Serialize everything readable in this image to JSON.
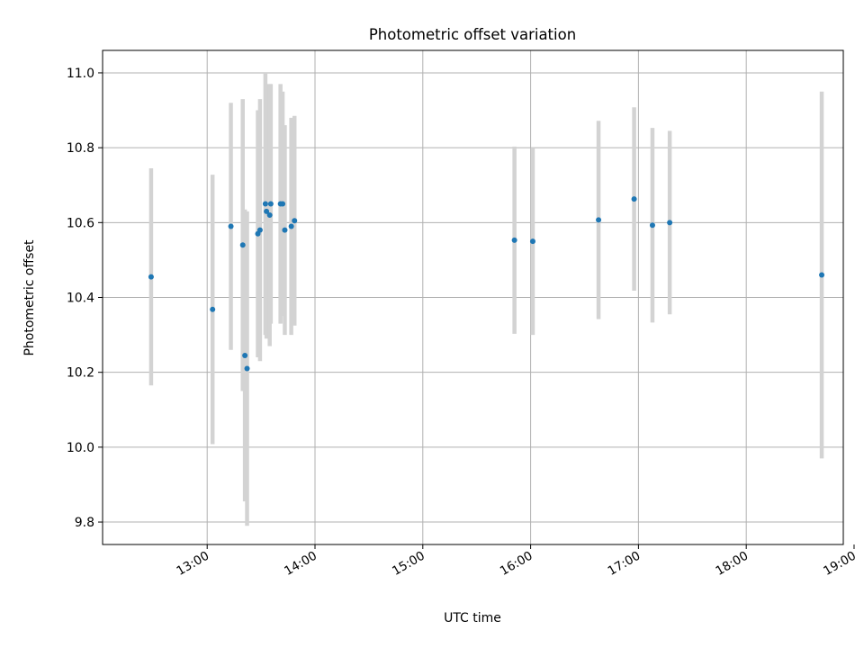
{
  "chart_data": {
    "type": "scatter",
    "title": "Photometric offset variation",
    "xlabel": "UTC time",
    "ylabel": "Photometric offset",
    "x_unit": "hours (UTC)",
    "xlim": [
      12.03,
      18.9
    ],
    "ylim": [
      9.74,
      11.06
    ],
    "xticks": [
      13,
      14,
      15,
      16,
      17,
      18,
      19
    ],
    "xtick_labels": [
      "13:00",
      "14:00",
      "15:00",
      "16:00",
      "17:00",
      "18:00",
      "19:00"
    ],
    "yticks": [
      9.8,
      10.0,
      10.2,
      10.4,
      10.6,
      10.8,
      11.0
    ],
    "ytick_labels": [
      "9.8",
      "10.0",
      "10.2",
      "10.4",
      "10.6",
      "10.8",
      "11.0"
    ],
    "grid": true,
    "colors": {
      "marker": "#1f77b4",
      "errorbar": "#d3d3d3",
      "grid": "#b0b0b0"
    },
    "points": [
      {
        "x": 12.48,
        "y": 10.455,
        "yerr": 0.29
      },
      {
        "x": 13.05,
        "y": 10.368,
        "yerr": 0.36
      },
      {
        "x": 13.22,
        "y": 10.59,
        "yerr": 0.33
      },
      {
        "x": 13.33,
        "y": 10.54,
        "yerr": 0.39
      },
      {
        "x": 13.35,
        "y": 10.245,
        "yerr": 0.39
      },
      {
        "x": 13.37,
        "y": 10.21,
        "yerr": 0.42
      },
      {
        "x": 13.47,
        "y": 10.57,
        "yerr": 0.33
      },
      {
        "x": 13.49,
        "y": 10.58,
        "yerr": 0.35
      },
      {
        "x": 13.54,
        "y": 10.65,
        "yerr": 0.35
      },
      {
        "x": 13.55,
        "y": 10.63,
        "yerr": 0.34
      },
      {
        "x": 13.58,
        "y": 10.62,
        "yerr": 0.35
      },
      {
        "x": 13.59,
        "y": 10.65,
        "yerr": 0.32
      },
      {
        "x": 13.68,
        "y": 10.65,
        "yerr": 0.32
      },
      {
        "x": 13.7,
        "y": 10.65,
        "yerr": 0.3
      },
      {
        "x": 13.72,
        "y": 10.58,
        "yerr": 0.28
      },
      {
        "x": 13.78,
        "y": 10.59,
        "yerr": 0.29
      },
      {
        "x": 13.81,
        "y": 10.605,
        "yerr": 0.28
      },
      {
        "x": 15.85,
        "y": 10.553,
        "yerr": 0.25
      },
      {
        "x": 16.02,
        "y": 10.55,
        "yerr": 0.25
      },
      {
        "x": 16.63,
        "y": 10.607,
        "yerr": 0.265
      },
      {
        "x": 16.96,
        "y": 10.663,
        "yerr": 0.245
      },
      {
        "x": 17.13,
        "y": 10.593,
        "yerr": 0.26
      },
      {
        "x": 17.29,
        "y": 10.6,
        "yerr": 0.245
      },
      {
        "x": 18.7,
        "y": 10.46,
        "yerr": 0.49
      }
    ]
  }
}
